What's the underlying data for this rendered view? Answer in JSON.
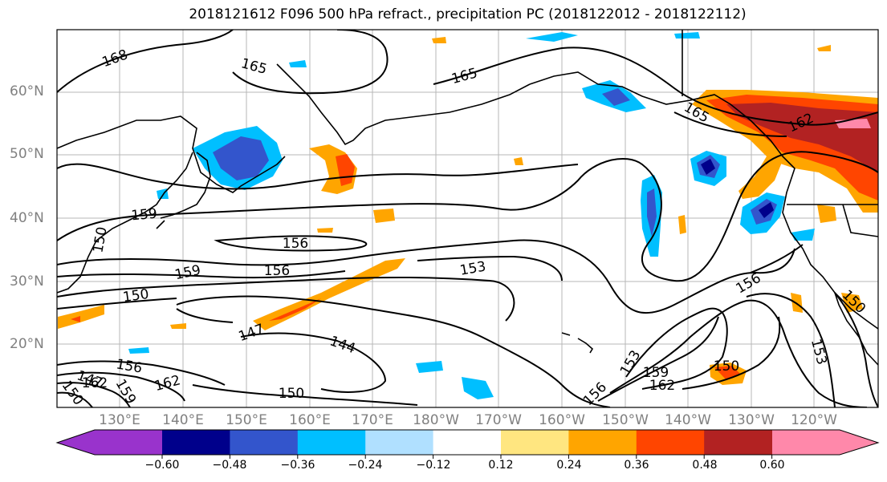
{
  "title": "2018121612 F096 500 hPa refract., precipitation PC (2018122012 - 2018122112)",
  "lat_labels": [
    "60°N",
    "50°N",
    "40°N",
    "30°N",
    "20°N"
  ],
  "lon_labels": [
    "130°E",
    "140°E",
    "150°E",
    "160°E",
    "170°E",
    "180°W",
    "170°W",
    "160°W",
    "150°W",
    "140°W",
    "130°W",
    "120°W"
  ],
  "contour_labels": [
    "168",
    "165",
    "165",
    "165",
    "162",
    "159",
    "156",
    "156",
    "153",
    "159",
    "156",
    "150",
    "150",
    "147",
    "144",
    "153",
    "159",
    "162",
    "150",
    "156",
    "150",
    "147",
    "162",
    "159",
    "153",
    "150",
    "150",
    "156",
    "162"
  ],
  "colorbar": {
    "ticks": [
      "−0.60",
      "−0.48",
      "−0.36",
      "−0.24",
      "−0.12",
      "0.12",
      "0.24",
      "0.36",
      "0.48",
      "0.60"
    ],
    "colors": [
      "#9933cc",
      "#00008b",
      "#3355cc",
      "#00bfff",
      "#b0e0ff",
      "#ffffff",
      "#ffe680",
      "#ffa500",
      "#ff4500",
      "#b22222",
      "#ff88aa"
    ]
  }
}
